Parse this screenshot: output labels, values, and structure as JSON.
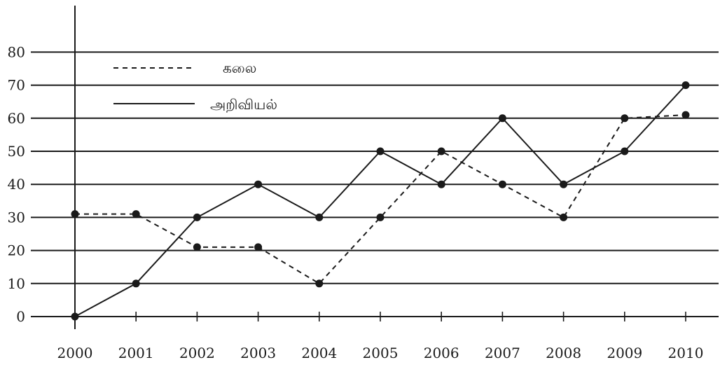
{
  "chart_data": {
    "type": "line",
    "title": "",
    "xlabel": "",
    "ylabel": "",
    "categories": [
      "2000",
      "2001",
      "2002",
      "2003",
      "2004",
      "2005",
      "2006",
      "2007",
      "2008",
      "2009",
      "2010"
    ],
    "yticks": [
      "0",
      "10",
      "20",
      "30",
      "40",
      "50",
      "60",
      "70",
      "80"
    ],
    "ylim": [
      0,
      80
    ],
    "grid": true,
    "legend_position": "top-left",
    "series": [
      {
        "name": "கலை",
        "style": "dashed",
        "values": [
          31,
          31,
          21,
          21,
          10,
          30,
          50,
          40,
          30,
          60,
          61
        ]
      },
      {
        "name": "அறிவியல்",
        "style": "solid",
        "values": [
          0,
          10,
          30,
          40,
          30,
          50,
          40,
          60,
          40,
          50,
          70
        ]
      }
    ],
    "colors": {
      "line": "#1a1a1a",
      "background": "#ffffff"
    }
  }
}
